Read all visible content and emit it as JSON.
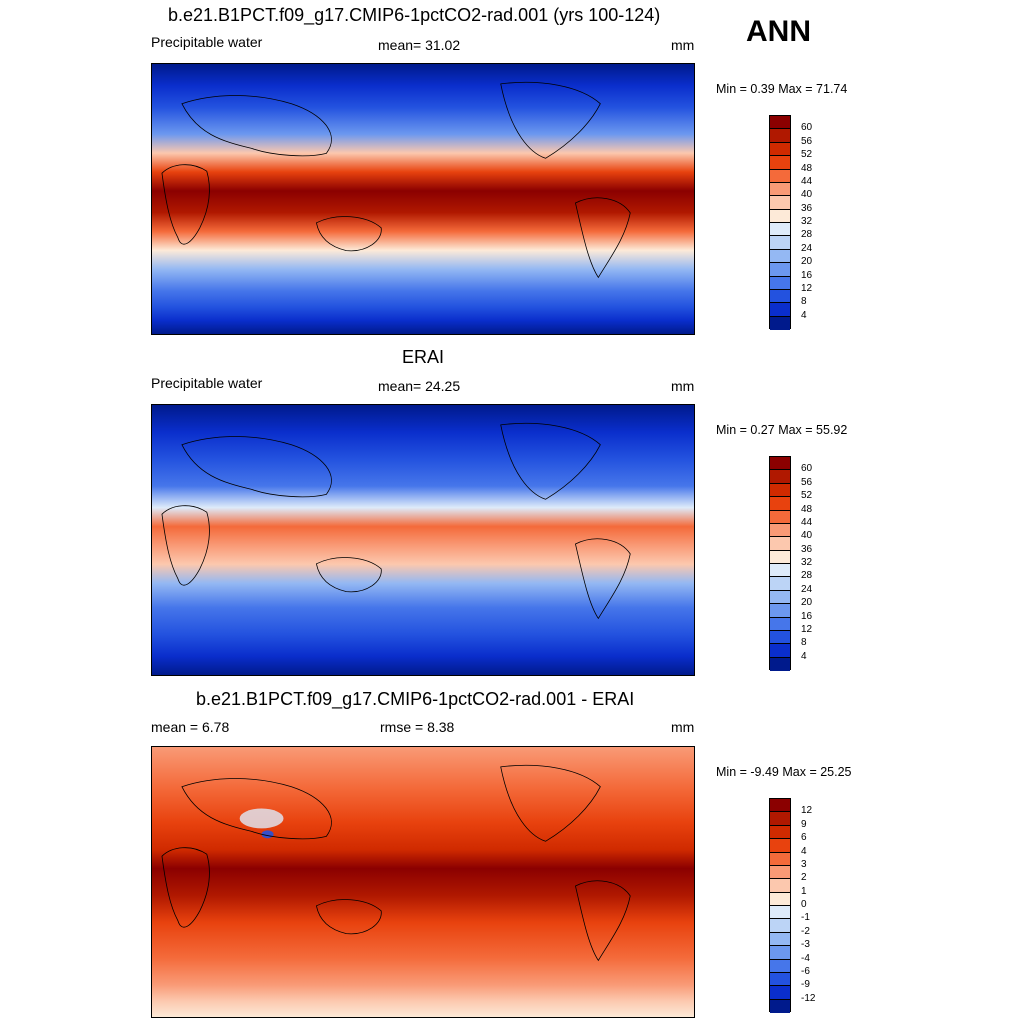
{
  "header": {
    "panel1_title": "b.e21.B1PCT.f09_g17.CMIP6-1pctCO2-rad.001 (yrs 100-124)",
    "season": "ANN"
  },
  "panel1": {
    "left_label": "Precipitable water",
    "center_label": "mean=  31.02",
    "right_label": "mm",
    "minmax": "Min =   0.39 Max =  71.74"
  },
  "panel2": {
    "title": "ERAI",
    "left_label": "Precipitable water",
    "center_label": "mean=  24.25",
    "right_label": "mm",
    "minmax": "Min =   0.27 Max =  55.92"
  },
  "panel3": {
    "title": "b.e21.B1PCT.f09_g17.CMIP6-1pctCO2-rad.001 - ERAI",
    "left_label": "mean =   6.78",
    "center_label": "rmse =   8.38",
    "right_label": "mm",
    "minmax": "Min =  -9.49 Max =  25.25"
  },
  "colorbar_abs": {
    "labels": [
      "60",
      "56",
      "52",
      "48",
      "44",
      "40",
      "36",
      "32",
      "28",
      "24",
      "20",
      "16",
      "12",
      "8",
      "4"
    ],
    "colors": [
      "#8B0000",
      "#B01800",
      "#D02A00",
      "#E8420E",
      "#F46A3A",
      "#F99A76",
      "#FCC8AE",
      "#FDEAD8",
      "#DEEBFA",
      "#BCD4F6",
      "#94B8F3",
      "#6C98EF",
      "#4676EA",
      "#2352DF",
      "#0A2ECC",
      "#001A8C"
    ]
  },
  "colorbar_diff": {
    "labels": [
      "12",
      "9",
      "6",
      "4",
      "3",
      "2",
      "1",
      "0",
      "-1",
      "-2",
      "-3",
      "-4",
      "-6",
      "-9",
      "-12"
    ],
    "colors": [
      "#8B0000",
      "#B01800",
      "#D02A00",
      "#E8420E",
      "#F46A3A",
      "#F99A76",
      "#FCC8AE",
      "#FDEAD8",
      "#DEEBFA",
      "#BCD4F6",
      "#94B8F3",
      "#6C98EF",
      "#4676EA",
      "#2352DF",
      "#0A2ECC",
      "#001A8C"
    ]
  }
}
